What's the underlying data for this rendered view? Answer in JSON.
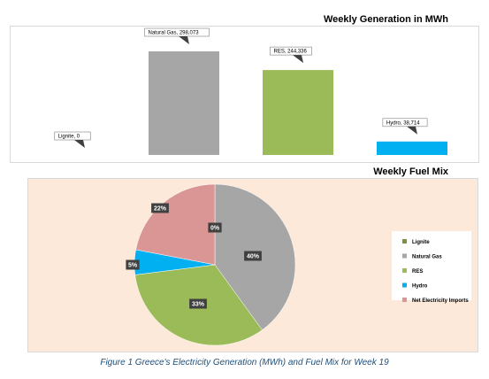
{
  "colors": {
    "lignite": "#77933c",
    "natural_gas": "#a6a6a6",
    "res": "#9bbb59",
    "hydro": "#00b0f0",
    "imports": "#d99694"
  },
  "chart_data": [
    {
      "type": "bar",
      "title": "Weekly Generation in MWh",
      "categories": [
        "Lignite",
        "Natural Gas",
        "RES",
        "Hydro"
      ],
      "values": [
        0,
        298073,
        244336,
        38714
      ],
      "data_labels": [
        "Lignite, 0",
        "Natural Gas, 298,073",
        "RES, 244,336",
        "Hydro, 38,714"
      ],
      "ylim": [
        0,
        298073
      ],
      "grid": false
    },
    {
      "type": "pie",
      "title": "Weekly Fuel Mix",
      "categories": [
        "Lignite",
        "Natural Gas",
        "RES",
        "Hydro",
        "Net Electricity Imports"
      ],
      "values": [
        0,
        40,
        33,
        5,
        22
      ],
      "data_labels": [
        "0%",
        "40%",
        "33%",
        "5%",
        "22%"
      ],
      "legend_position": "right"
    }
  ],
  "caption": "Figure 1 Greece's Electricity Generation (MWh) and Fuel Mix for Week 19"
}
